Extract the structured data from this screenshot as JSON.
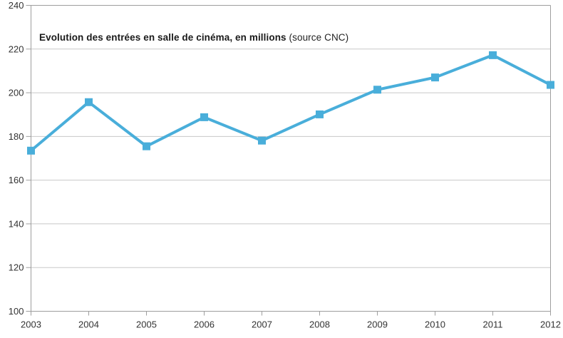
{
  "title": {
    "main": "Evolution des entrées en salle de cinéma, en millions",
    "source": " (source CNC)"
  },
  "colors": {
    "line": "#49AEDA",
    "grid": "#c8c8c8",
    "axis": "#9e9e9e",
    "tick_text": "#333333",
    "title_text": "#1a1a1a",
    "background": "#ffffff"
  },
  "chart_data": {
    "type": "line",
    "title": "Evolution des entrées en salle de cinéma, en millions (source CNC)",
    "x": [
      2003,
      2004,
      2005,
      2006,
      2007,
      2008,
      2009,
      2010,
      2011,
      2012
    ],
    "series": [
      {
        "name": "Entrées en salle de cinéma (millions)",
        "values": [
          173.5,
          195.7,
          175.5,
          188.8,
          178.1,
          190.1,
          201.4,
          207.0,
          217.2,
          203.6
        ]
      }
    ],
    "xlabel": "",
    "ylabel": "",
    "ylim": [
      100,
      240
    ],
    "yticks": [
      100,
      120,
      140,
      160,
      180,
      200,
      220,
      240
    ],
    "grid": "horizontal-only",
    "legend": "none",
    "marker": "square",
    "line_color": "#49AEDA"
  }
}
